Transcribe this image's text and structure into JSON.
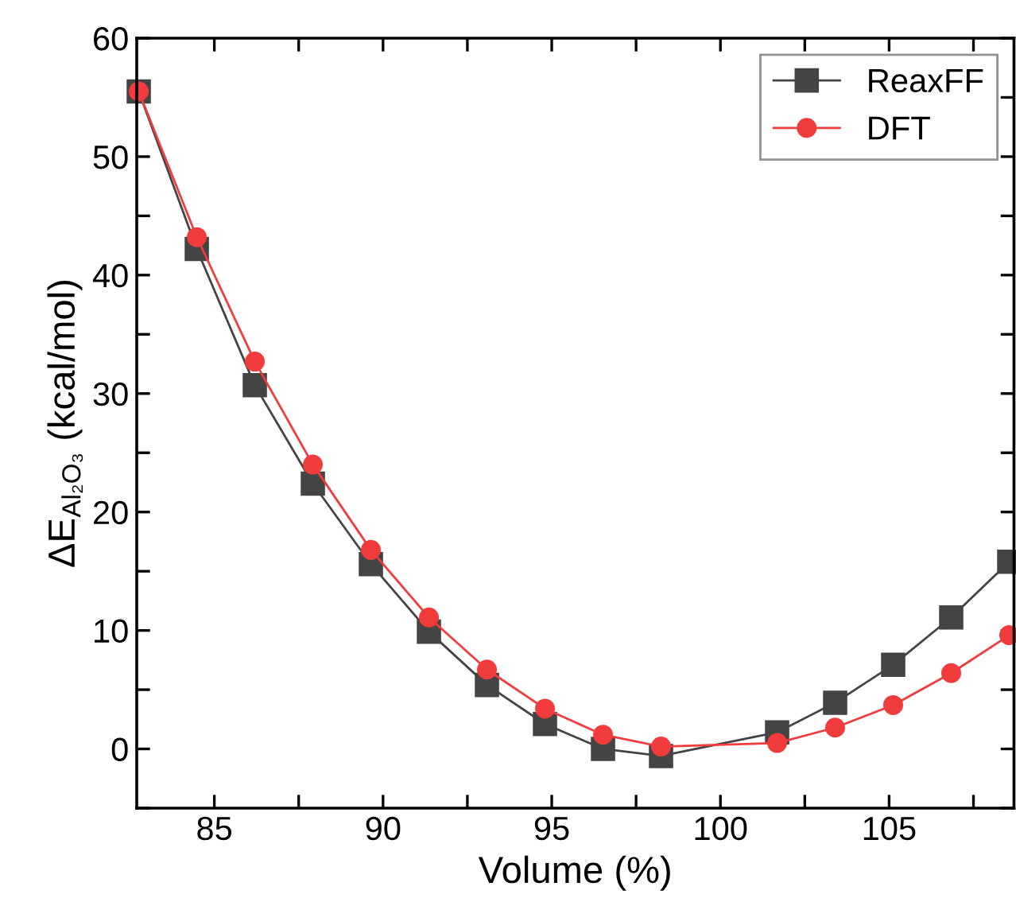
{
  "chart_data": {
    "type": "line",
    "xlabel": "Volume (%)",
    "ylabel": "ΔE$_{Al₂O₃}$ (kcal/mol)",
    "x": [
      82.76,
      84.48,
      86.2,
      87.92,
      89.64,
      91.36,
      93.08,
      94.8,
      96.52,
      98.24,
      101.68,
      103.4,
      105.12,
      106.84,
      108.56
    ],
    "series": [
      {
        "name": "ReaxFF",
        "color": "#444444",
        "marker": "square",
        "values": [
          55.5,
          42.2,
          30.7,
          22.4,
          15.6,
          9.9,
          5.4,
          2.1,
          0.0,
          -0.6,
          1.4,
          3.9,
          7.1,
          11.1,
          15.8
        ]
      },
      {
        "name": "DFT",
        "color": "#f03c3c",
        "marker": "circle",
        "values": [
          55.5,
          43.2,
          32.7,
          24.0,
          16.8,
          11.1,
          6.7,
          3.4,
          1.2,
          0.2,
          0.5,
          1.8,
          3.7,
          6.4,
          9.6
        ]
      }
    ],
    "xlim": [
      82.7,
      108.7
    ],
    "ylim": [
      -5,
      60
    ],
    "xticks": [
      85,
      {
        "value": 87.5,
        "label": null
      },
      90,
      {
        "value": 92.5,
        "label": null
      },
      95,
      {
        "value": 97.5,
        "label": null
      },
      100,
      {
        "value": 102.5,
        "label": null
      },
      105,
      {
        "value": 107.5,
        "label": null
      }
    ],
    "yticks": [
      {
        "value": -5,
        "label": null
      },
      0,
      {
        "value": 5,
        "label": null
      },
      10,
      {
        "value": 15,
        "label": null
      },
      20,
      {
        "value": 25,
        "label": null
      },
      30,
      {
        "value": 35,
        "label": null
      },
      40,
      {
        "value": 45,
        "label": null
      },
      50,
      {
        "value": 55,
        "label": null
      },
      60
    ],
    "grid": false,
    "legend": "top right",
    "line_style": "solid"
  }
}
